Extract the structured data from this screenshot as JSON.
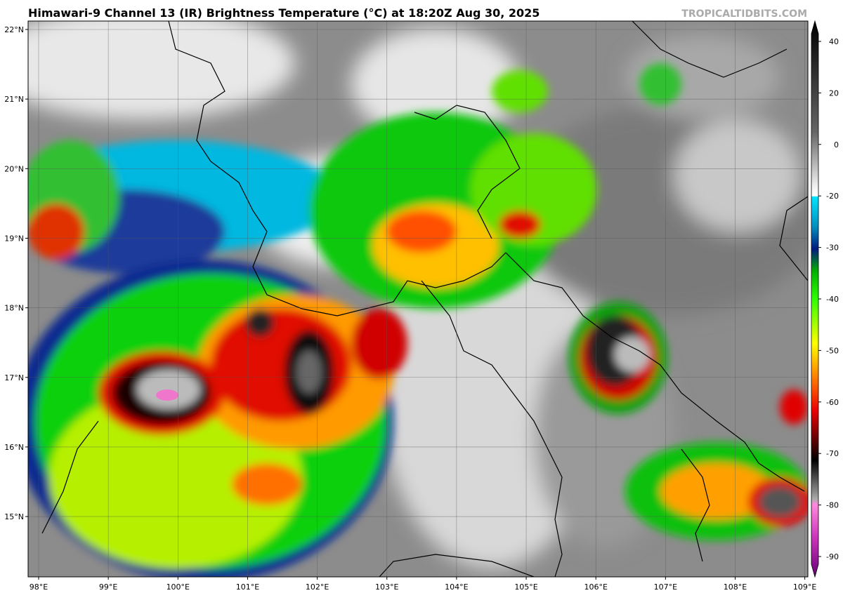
{
  "header": {
    "title": "Himawari-9 Channel 13 (IR) Brightness Temperature (°C) at 18:20Z Aug 30, 2025",
    "credit": "TROPICALTIDBITS.COM"
  },
  "map": {
    "lat_labels": [
      "22°N",
      "21°N",
      "20°N",
      "19°N",
      "18°N",
      "17°N",
      "16°N",
      "15°N"
    ],
    "lon_labels": [
      "98°E",
      "99°E",
      "100°E",
      "101°E",
      "102°E",
      "103°E",
      "104°E",
      "105°E",
      "106°E",
      "107°E",
      "108°E",
      "109°E"
    ]
  },
  "colorbar": {
    "ticks": [
      40,
      20,
      0,
      -20,
      -30,
      -40,
      -50,
      -60,
      -70,
      -80,
      -90
    ]
  }
}
